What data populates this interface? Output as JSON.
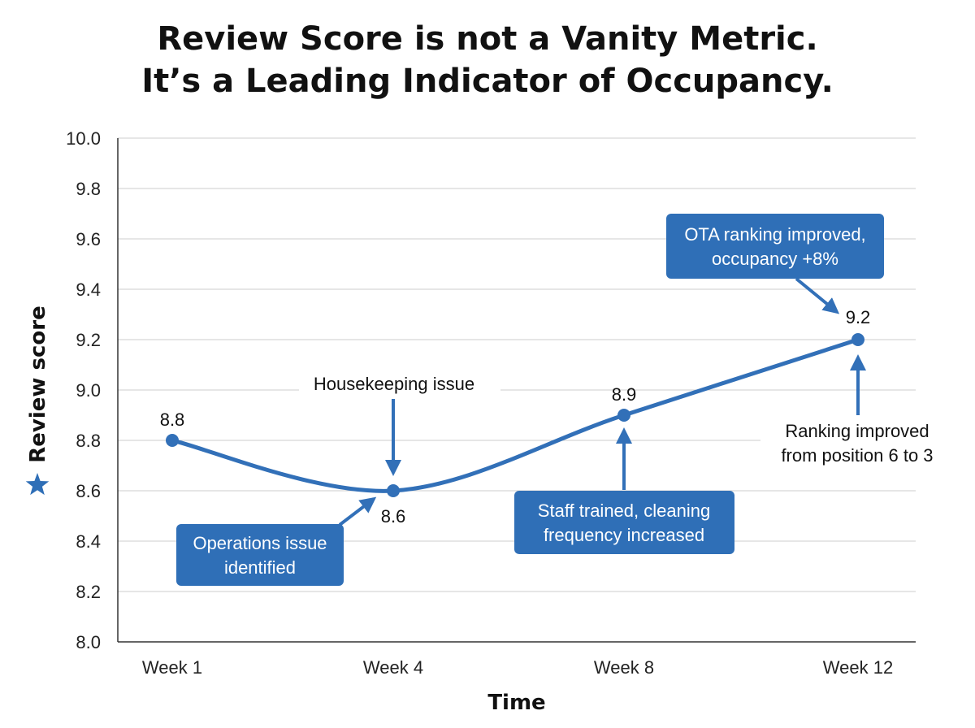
{
  "title_lines": [
    "Review Score is not a Vanity Metric.",
    "It’s a Leading Indicator of Occupancy."
  ],
  "colors": {
    "line": "#3270b8",
    "box": "#2f6fb7",
    "grid": "#cccccc",
    "axis": "#333333",
    "text": "#111111"
  },
  "chart_data": {
    "type": "line",
    "title": "Review Score is not a Vanity Metric. It’s a Leading Indicator of Occupancy.",
    "xlabel": "Time",
    "ylabel": "Review score",
    "ylabel_icon": "star-icon",
    "categories": [
      "Week 1",
      "Week 4",
      "Week 8",
      "Week 12"
    ],
    "values": [
      8.8,
      8.6,
      8.9,
      9.2
    ],
    "data_labels": [
      "8.8",
      "8.6",
      "8.9",
      "9.2"
    ],
    "ylim": [
      8.0,
      10.0
    ],
    "yticks": [
      "8.0",
      "8.2",
      "8.4",
      "8.6",
      "8.8",
      "9.0",
      "9.2",
      "9.4",
      "9.6",
      "9.8",
      "10.0"
    ],
    "grid": true,
    "legend": "none",
    "annotations": [
      {
        "lines": [
          "Housekeeping issue"
        ],
        "style": "plain",
        "points_to": "Week 4"
      },
      {
        "lines": [
          "Operations issue",
          "identified"
        ],
        "style": "box",
        "points_to": "Week 4"
      },
      {
        "lines": [
          "Staff trained, cleaning",
          "frequency increased"
        ],
        "style": "box",
        "points_to": "Week 8"
      },
      {
        "lines": [
          "OTA ranking improved,",
          "occupancy +8%"
        ],
        "style": "box",
        "points_to": "Week 12"
      },
      {
        "lines": [
          "Ranking improved",
          "from position 6 to 3"
        ],
        "style": "plain",
        "points_to": "Week 12"
      }
    ]
  }
}
